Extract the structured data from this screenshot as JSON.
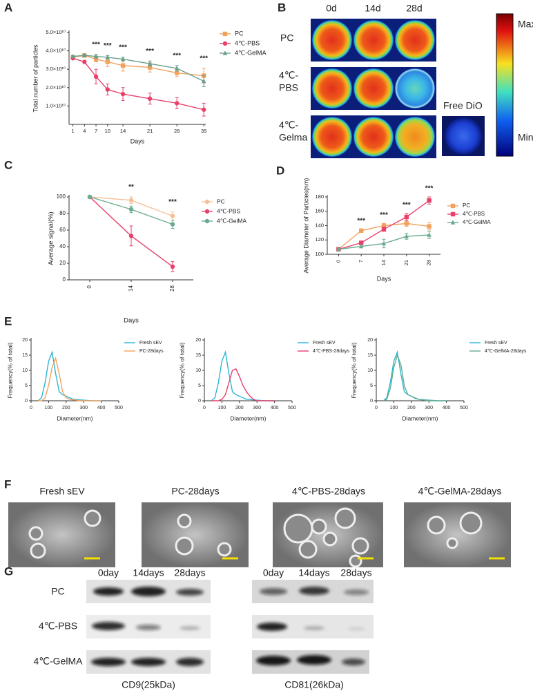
{
  "panel_labels": [
    "A",
    "B",
    "C",
    "D",
    "E",
    "F",
    "G"
  ],
  "chart_data": [
    {
      "type": "line",
      "xlabel": "Days",
      "ylabel": "Total number of particles",
      "x": [
        1,
        4,
        7,
        10,
        14,
        21,
        28,
        35
      ],
      "xlim": [
        0,
        35.5
      ],
      "xticks": [
        1,
        4,
        7,
        10,
        14,
        21,
        28,
        35
      ],
      "ylim": [
        0,
        50000000000.0
      ],
      "yticks": [
        {
          "value": 10000000000.0,
          "label": "1.0×10¹⁰"
        },
        {
          "value": 20000000000.0,
          "label": "2.0×10¹⁰"
        },
        {
          "value": 30000000000.0,
          "label": "3.0×10¹⁰"
        },
        {
          "value": 40000000000.0,
          "label": "4.0×10¹⁰"
        },
        {
          "value": 50000000000.0,
          "label": "5.0×10¹⁰"
        }
      ],
      "series": [
        {
          "name": "PC",
          "color": "#f2a25e",
          "marker": "square",
          "values": [
            36500000000.0,
            37500000000.0,
            35500000000.0,
            34000000000.0,
            32000000000.0,
            31000000000.0,
            28000000000.0,
            26500000000.0
          ],
          "errors": [
            500000000.0,
            500000000.0,
            1500000000.0,
            2500000000.0,
            3000000000.0,
            2500000000.0,
            2000000000.0,
            4000000000.0
          ]
        },
        {
          "name": "4℃-PBS",
          "color": "#e8406a",
          "marker": "circle",
          "values": [
            36000000000.0,
            34000000000.0,
            26000000000.0,
            19000000000.0,
            16500000000.0,
            14000000000.0,
            11500000000.0,
            8000000000.0
          ],
          "errors": [
            500000000.0,
            500000000.0,
            4000000000.0,
            3000000000.0,
            3500000000.0,
            3000000000.0,
            3000000000.0,
            3500000000.0
          ]
        },
        {
          "name": "4℃-GelMA",
          "color": "#6a9e8a",
          "marker": "triangle",
          "values": [
            37000000000.0,
            37500000000.0,
            37000000000.0,
            36500000000.0,
            35500000000.0,
            33000000000.0,
            30500000000.0,
            23500000000.0
          ],
          "errors": [
            500000000.0,
            500000000.0,
            1000000000.0,
            1000000000.0,
            1000000000.0,
            1500000000.0,
            1500000000.0,
            3000000000.0
          ]
        }
      ],
      "annotations": [
        {
          "x": 7,
          "text": "***"
        },
        {
          "x": 10,
          "text": "***"
        },
        {
          "x": 14,
          "text": "***"
        },
        {
          "x": 21,
          "text": "***"
        },
        {
          "x": 28,
          "text": "***"
        },
        {
          "x": 35,
          "text": "***"
        }
      ]
    },
    {
      "type": "line",
      "xlabel": "Days",
      "ylabel": "Average signal(%)",
      "categories": [
        "0",
        "14",
        "28"
      ],
      "ylim": [
        0,
        100
      ],
      "yticks": [
        0,
        20,
        40,
        60,
        80,
        100
      ],
      "series": [
        {
          "name": "PC",
          "color": "#f7bf96",
          "marker": "circle",
          "values": [
            100,
            96,
            77
          ],
          "errors": [
            0,
            4,
            5
          ]
        },
        {
          "name": "4℃-PBS",
          "color": "#e8406a",
          "marker": "circle",
          "values": [
            100,
            53,
            16
          ],
          "errors": [
            0,
            12,
            6
          ]
        },
        {
          "name": "4℃-GelMA",
          "color": "#6aab8e",
          "marker": "circle",
          "values": [
            100,
            85,
            67
          ],
          "errors": [
            0,
            4,
            5
          ]
        }
      ],
      "annotations": [
        {
          "category": "14",
          "text": "**"
        },
        {
          "category": "28",
          "text": "***"
        }
      ]
    },
    {
      "type": "line",
      "xlabel": "Days",
      "ylabel": "Average Diameter of Particles(nm)",
      "categories": [
        "0",
        "7",
        "14",
        "21",
        "28"
      ],
      "ylim": [
        100,
        180
      ],
      "yticks": [
        100,
        120,
        140,
        160,
        180
      ],
      "series": [
        {
          "name": "PC",
          "color": "#f2a25e",
          "marker": "square",
          "values": [
            107,
            133,
            140,
            143,
            139
          ],
          "errors": [
            1,
            2,
            3,
            4,
            5
          ]
        },
        {
          "name": "4℃-PBS",
          "color": "#e8406a",
          "marker": "square",
          "values": [
            107,
            116,
            135,
            152,
            175
          ],
          "errors": [
            1,
            2,
            3,
            5,
            5
          ]
        },
        {
          "name": "4℃-GelMA",
          "color": "#6aab8e",
          "marker": "triangle",
          "values": [
            107,
            111,
            115,
            125,
            127
          ],
          "errors": [
            1,
            2,
            6,
            4,
            5
          ]
        }
      ],
      "annotations": [
        {
          "category": "7",
          "text": "***"
        },
        {
          "category": "14",
          "text": "***"
        },
        {
          "category": "21",
          "text": "***"
        },
        {
          "category": "28",
          "text": "***"
        }
      ]
    },
    {
      "type": "line",
      "xlabel": "Diameter(nm)",
      "ylabel": "Frequency(% of total)",
      "x": [
        40,
        60,
        80,
        100,
        120,
        140,
        160,
        180,
        200,
        220,
        240,
        260,
        280,
        300,
        350,
        400
      ],
      "xlim": [
        0,
        500
      ],
      "xticks": [
        0,
        100,
        200,
        300,
        400,
        500
      ],
      "ylim": [
        0,
        20
      ],
      "yticks": [
        0,
        5,
        10,
        15,
        20
      ],
      "series": [
        {
          "name": "Fresh sEV",
          "color": "#29b6d6",
          "values": [
            0,
            1,
            6,
            13,
            16,
            9,
            3,
            2,
            1.5,
            1,
            0.5,
            0.4,
            0.3,
            0.2,
            0,
            0
          ]
        },
        {
          "name": "PC-28days",
          "color": "#f2a25e",
          "values": [
            0,
            0,
            1,
            5,
            11,
            14,
            9,
            3,
            1,
            0.5,
            0.3,
            0.2,
            0,
            0,
            0,
            0
          ]
        }
      ]
    },
    {
      "type": "line",
      "xlabel": "Diameter(nm)",
      "ylabel": "Frequency(% of total)",
      "x": [
        40,
        60,
        80,
        100,
        120,
        140,
        160,
        180,
        200,
        220,
        240,
        260,
        280,
        300,
        350,
        400
      ],
      "xlim": [
        0,
        500
      ],
      "xticks": [
        0,
        100,
        200,
        300,
        400,
        500
      ],
      "ylim": [
        0,
        20
      ],
      "yticks": [
        0,
        5,
        10,
        15,
        20
      ],
      "series": [
        {
          "name": "Fresh sEV",
          "color": "#29b6d6",
          "values": [
            0,
            1,
            6,
            13,
            16,
            9,
            3,
            2,
            1.5,
            1,
            0.5,
            0.4,
            0.3,
            0.2,
            0,
            0
          ]
        },
        {
          "name": "4℃-PBS-28days",
          "color": "#e8406a",
          "values": [
            0,
            0,
            0,
            0.5,
            2,
            6,
            10,
            10.5,
            8,
            5,
            3,
            1.5,
            0.5,
            0,
            0,
            0
          ]
        }
      ]
    },
    {
      "type": "line",
      "xlabel": "Diameter(nm)",
      "ylabel": "Frequency(% of total)",
      "x": [
        40,
        60,
        80,
        100,
        120,
        140,
        160,
        180,
        200,
        220,
        240,
        260,
        280,
        300,
        350,
        400
      ],
      "xlim": [
        0,
        500
      ],
      "xticks": [
        0,
        100,
        200,
        300,
        400,
        500
      ],
      "ylim": [
        0,
        20
      ],
      "yticks": [
        0,
        5,
        10,
        15,
        20
      ],
      "series": [
        {
          "name": "Fresh sEV",
          "color": "#29b6d6",
          "values": [
            0,
            1,
            6,
            13,
            16,
            9,
            3,
            2,
            1.5,
            1,
            0.5,
            0.4,
            0.3,
            0.2,
            0,
            0
          ]
        },
        {
          "name": "4℃-GelMA-28days",
          "color": "#6aab8e",
          "values": [
            0,
            0.5,
            4,
            11,
            15,
            12,
            5,
            2,
            1.5,
            0.8,
            0.5,
            0.3,
            0.2,
            0,
            0,
            0
          ]
        }
      ]
    }
  ],
  "panel_b": {
    "columns": [
      "0d",
      "14d",
      "28d"
    ],
    "rows": [
      [
        "PC"
      ],
      [
        "4℃-",
        "PBS"
      ],
      [
        "4℃-",
        "Gelma"
      ]
    ],
    "free_label": "Free DiO",
    "scale_max": "Max",
    "scale_min": "Min"
  },
  "panel_f": {
    "labels": [
      "Fresh sEV",
      "PC-28days",
      "4℃-PBS-28days",
      "4℃-GelMA-28days"
    ]
  },
  "panel_g": {
    "columns_cd9": [
      "0day",
      "14days",
      "28days"
    ],
    "columns_cd81": [
      "0day",
      "14days",
      "28days"
    ],
    "rows": [
      "PC",
      "4℃-PBS",
      "4℃-GelMA"
    ],
    "captions": [
      "CD9(25kDa)",
      "CD81(26kDa)"
    ]
  }
}
